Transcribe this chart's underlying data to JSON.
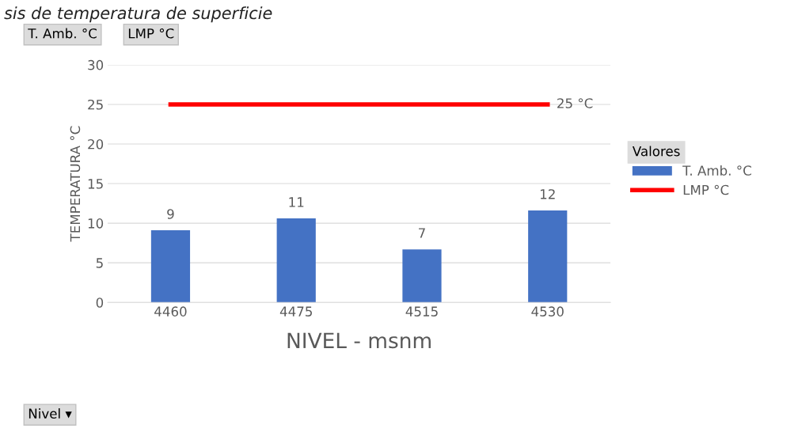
{
  "chart_data": {
    "type": "bar",
    "title": "sis de temperatura de superficie",
    "xlabel": "NIVEL - msnm",
    "ylabel": "TEMPERATURA °C",
    "legend_title": "Valores",
    "categories": [
      "4460",
      "4475",
      "4515",
      "4530"
    ],
    "series": [
      {
        "name": "T. Amb. °C",
        "color": "#4472c4",
        "values": [
          9.1,
          10.6,
          6.7,
          11.6
        ],
        "value_labels": [
          "9",
          "11",
          "7",
          "12"
        ]
      },
      {
        "name": "LMP °C",
        "type": "line",
        "color": "#ff0000",
        "values": [
          25,
          25,
          25,
          25
        ],
        "value_labels": [
          null,
          null,
          null,
          "25 °C"
        ]
      }
    ],
    "ylim": [
      0,
      30
    ],
    "yticks": [
      0,
      5,
      10,
      15,
      20,
      25,
      30
    ],
    "grid": "y",
    "legend": "right",
    "marker": "none",
    "annotations": [
      "T. Amb. °C",
      "LMP °C",
      "Nivel ▾"
    ]
  }
}
